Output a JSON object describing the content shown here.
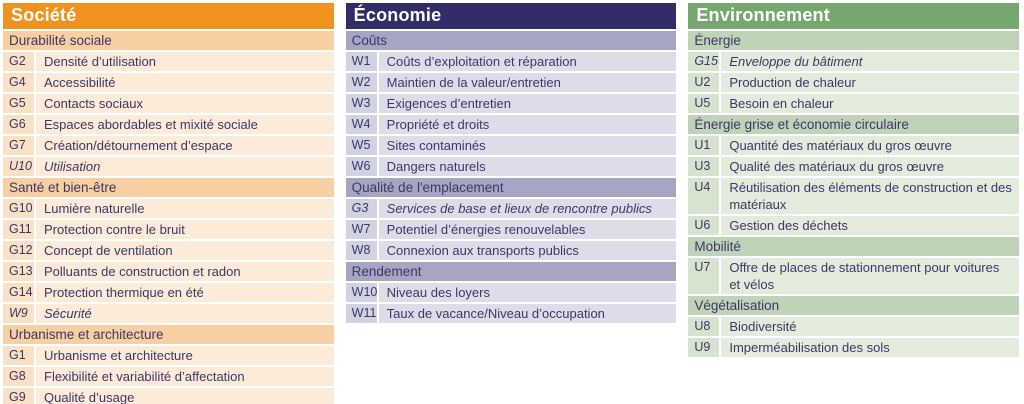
{
  "text_color": "#3d3766",
  "columns": [
    {
      "id": "societe",
      "title": "Société",
      "theme": {
        "header_bg": "#f0931e",
        "section_bg": "#f8cfa2",
        "row_bg": "#fcebd9",
        "code_bg": "#f8e1c5"
      },
      "sections": [
        {
          "label": "Durabilité sociale",
          "rows": [
            {
              "code": "G2",
              "label": "Densité d’utilisation",
              "italic": false
            },
            {
              "code": "G4",
              "label": "Accessibilité",
              "italic": false
            },
            {
              "code": "G5",
              "label": "Contacts sociaux",
              "italic": false
            },
            {
              "code": "G6",
              "label": "Espaces abordables et mixité sociale",
              "italic": false
            },
            {
              "code": "G7",
              "label": "Création/détournement d’espace",
              "italic": false
            },
            {
              "code": "U10",
              "label": "Utilisation",
              "italic": true
            }
          ]
        },
        {
          "label": "Santé et bien-être",
          "rows": [
            {
              "code": "G10",
              "label": "Lumière naturelle",
              "italic": false
            },
            {
              "code": "G11",
              "label": "Protection contre le bruit",
              "italic": false
            },
            {
              "code": "G12",
              "label": "Concept de ventilation",
              "italic": false
            },
            {
              "code": "G13",
              "label": "Polluants de construction et radon",
              "italic": false
            },
            {
              "code": "G14",
              "label": "Protection thermique en été",
              "italic": false
            },
            {
              "code": "W9",
              "label": "Sécurité",
              "italic": true
            }
          ]
        },
        {
          "label": "Urbanisme et architecture",
          "rows": [
            {
              "code": "G1",
              "label": "Urbanisme et architecture",
              "italic": false
            },
            {
              "code": "G8",
              "label": "Flexibilité et variabilité d’affectation",
              "italic": false
            },
            {
              "code": "G9",
              "label": "Qualité d’usage",
              "italic": false
            }
          ]
        }
      ]
    },
    {
      "id": "economie",
      "title": "Économie",
      "theme": {
        "header_bg": "#322d68",
        "section_bg": "#a5a6c4",
        "row_bg": "#dcdde9",
        "code_bg": "#d1d2e2"
      },
      "sections": [
        {
          "label": "Coûts",
          "rows": [
            {
              "code": "W1",
              "label": "Coûts d’exploitation et réparation",
              "italic": false
            },
            {
              "code": "W2",
              "label": "Maintien de la valeur/entretien",
              "italic": false
            },
            {
              "code": "W3",
              "label": "Exigences d’entretien",
              "italic": false
            },
            {
              "code": "W4",
              "label": "Propriété et droits",
              "italic": false
            },
            {
              "code": "W5",
              "label": "Sites contaminés",
              "italic": false
            },
            {
              "code": "W6",
              "label": "Dangers naturels",
              "italic": false
            }
          ]
        },
        {
          "label": "Qualité de l'emplacement",
          "rows": [
            {
              "code": "G3",
              "label": "Services de base et lieux de rencontre publics",
              "italic": true
            },
            {
              "code": "W7",
              "label": "Potentiel d’énergies renouvelables",
              "italic": false
            },
            {
              "code": "W8",
              "label": "Connexion aux transports publics",
              "italic": false
            }
          ]
        },
        {
          "label": "Rendement",
          "rows": [
            {
              "code": "W10",
              "label": "Niveau des loyers",
              "italic": false
            },
            {
              "code": "W11",
              "label": "Taux de vacance/Niveau d’occupation",
              "italic": false
            }
          ]
        }
      ]
    },
    {
      "id": "environnement",
      "title": "Environnement",
      "theme": {
        "header_bg": "#75a76f",
        "section_bg": "#bfd3b8",
        "row_bg": "#e3ebdc",
        "code_bg": "#d6e3cf"
      },
      "sections": [
        {
          "label": "Énergie",
          "rows": [
            {
              "code": "G15",
              "label": "Enveloppe du bâtiment",
              "italic": true
            },
            {
              "code": "U2",
              "label": "Production de chaleur",
              "italic": false
            },
            {
              "code": "U5",
              "label": "Besoin en chaleur",
              "italic": false
            }
          ]
        },
        {
          "label": "Énergie grise et économie circulaire",
          "rows": [
            {
              "code": "U1",
              "label": "Quantité des matériaux du gros œuvre",
              "italic": false
            },
            {
              "code": "U3",
              "label": "Qualité des matériaux du gros œuvre",
              "italic": false
            },
            {
              "code": "U4",
              "label": "Réutilisation des éléments de construction et des matériaux",
              "italic": false
            },
            {
              "code": "U6",
              "label": "Gestion des déchets",
              "italic": false
            }
          ]
        },
        {
          "label": "Mobilité",
          "rows": [
            {
              "code": "U7",
              "label": "Offre de places de stationnement pour voitures et vélos",
              "italic": false
            }
          ]
        },
        {
          "label": "Végétalisation",
          "rows": [
            {
              "code": "U8",
              "label": "Biodiversité",
              "italic": false
            },
            {
              "code": "U9",
              "label": "Imperméabilisation des sols",
              "italic": false
            }
          ]
        }
      ]
    }
  ]
}
